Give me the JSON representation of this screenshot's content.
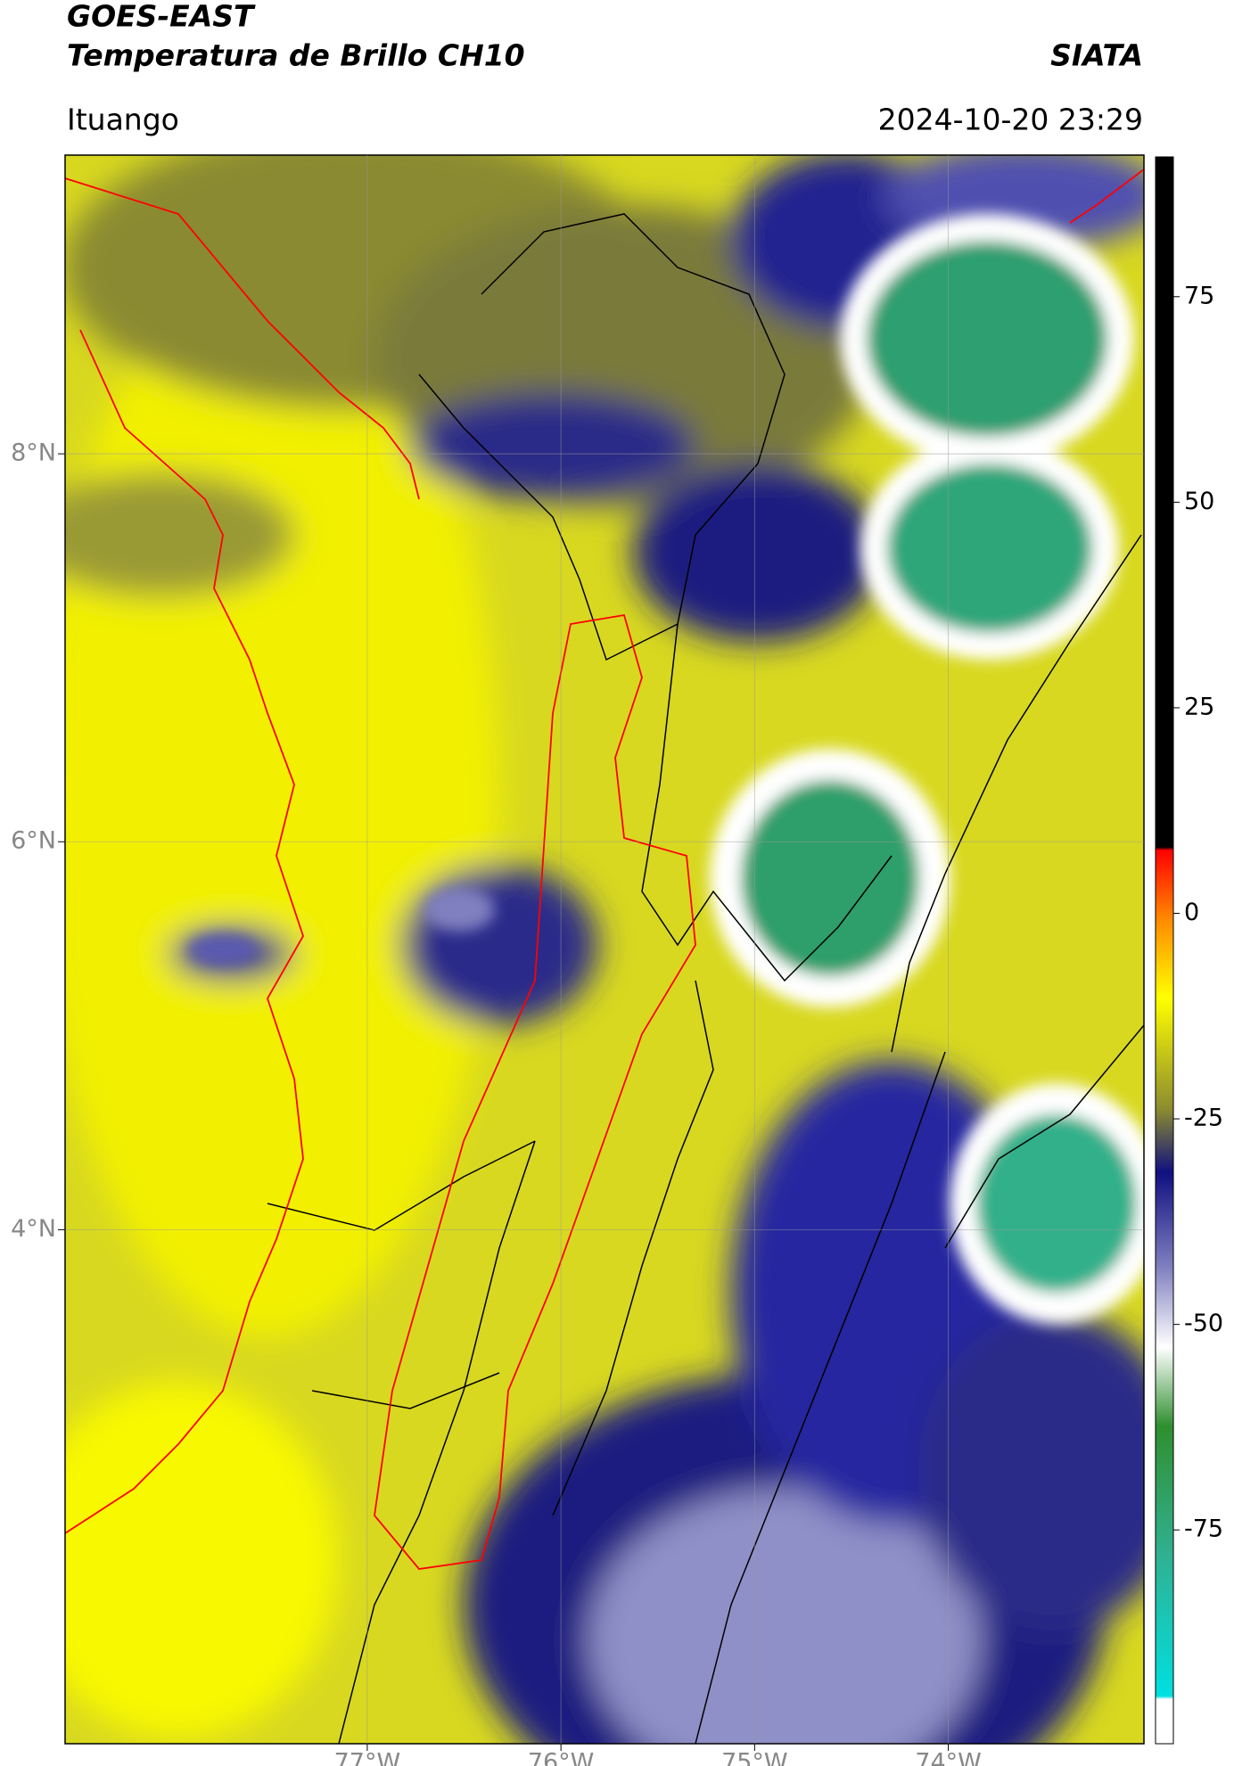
{
  "header": {
    "title": "GOES-EAST",
    "subtitle": "Temperatura de Brillo CH10",
    "source": "SIATA",
    "location": "Ituango",
    "datetime": "2024-10-20 23:29"
  },
  "map": {
    "xlim": [
      -78.56,
      -72.99
    ],
    "ylim": [
      1.35,
      9.54
    ],
    "yticks": [
      {
        "value": 8,
        "label": "8°N"
      },
      {
        "value": 6,
        "label": "6°N"
      },
      {
        "value": 4,
        "label": "4°N"
      }
    ],
    "xticks": [
      {
        "value": -77,
        "label": "77°W"
      },
      {
        "value": -76,
        "label": "76°W"
      },
      {
        "value": -75,
        "label": "75°W"
      },
      {
        "value": -74,
        "label": "74°W"
      }
    ]
  },
  "colorbar": {
    "lim": [
      -101,
      92
    ],
    "ticks": [
      75,
      50,
      25,
      0,
      -25,
      -50,
      -75
    ]
  }
}
